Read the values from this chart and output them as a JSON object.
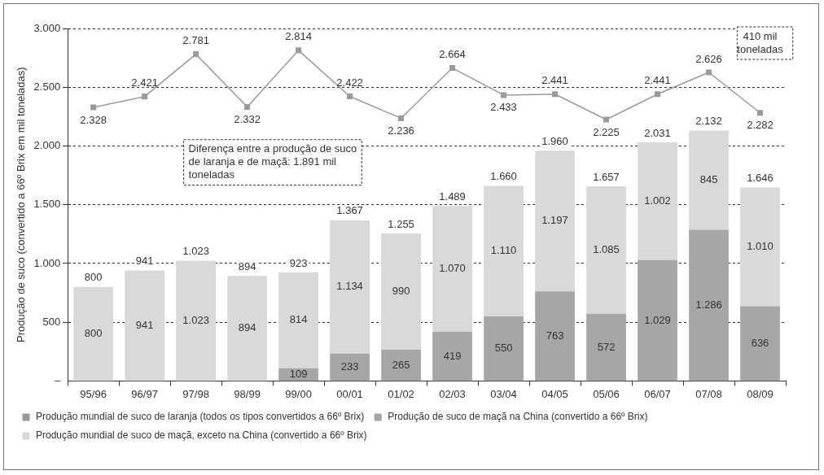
{
  "chart_data": {
    "type": "bar",
    "stacked": true,
    "ylabel": "Produção de suco (convertido a 66º Brix em mil toneladas)",
    "categories": [
      "95/96",
      "96/97",
      "97/98",
      "98/99",
      "99/00",
      "00/01",
      "01/02",
      "02/03",
      "03/04",
      "04/05",
      "05/06",
      "06/07",
      "07/08",
      "08/09"
    ],
    "series": [
      {
        "name": "Produção de suco de maçã na China (convertido a 66º Brix)",
        "color": "#a6a6a6",
        "values": [
          null,
          null,
          null,
          null,
          109,
          233,
          265,
          419,
          550,
          763,
          572,
          1029,
          1286,
          636
        ],
        "value_labels": [
          null,
          null,
          null,
          null,
          "109",
          "233",
          "265",
          "419",
          "550",
          "763",
          "572",
          "1.029",
          "1.286",
          "636"
        ]
      },
      {
        "name": "Produção mundial de suco de maçã, exceto na China (convertido a 66º Brix)",
        "color": "#d9d9d9",
        "values": [
          800,
          941,
          1023,
          894,
          814,
          1134,
          990,
          1070,
          1110,
          1197,
          1085,
          1002,
          845,
          1010
        ],
        "value_labels": [
          "800",
          "941",
          "1.023",
          "894",
          "814",
          "1.134",
          "990",
          "1.070",
          "1.110",
          "1.197",
          "1.085",
          "1.002",
          "845",
          "1.010"
        ]
      },
      {
        "name": "Produção mundial de suco de laranja (todos os tipos convertidos a 66º Brix)",
        "type": "line",
        "color": "#9a9a9a",
        "values": [
          2328,
          2421,
          2781,
          2332,
          2814,
          2422,
          2236,
          2664,
          2433,
          2441,
          2225,
          2441,
          2626,
          2282
        ],
        "value_labels": [
          "2.328",
          "2.421",
          "2.781",
          "2.332",
          "2.814",
          "2.422",
          "2.236",
          "2.664",
          "2.433",
          "2.441",
          "2.225",
          "2.441",
          "2.626",
          "2.282"
        ]
      }
    ],
    "totals": [
      "800",
      "941",
      "1.023",
      "894",
      "923",
      "1.367",
      "1.255",
      "1.489",
      "1.660",
      "1.960",
      "1.657",
      "2.031",
      "2.132",
      "1.646"
    ],
    "ylim": [
      0,
      3000
    ],
    "yticks": [
      {
        "value": 0,
        "label": "–"
      },
      500,
      {
        "value": 1000,
        "label": "1.000"
      },
      {
        "value": 1500,
        "label": "1.500"
      },
      {
        "value": 2000,
        "label": "2.000"
      },
      {
        "value": 2500,
        "label": "2.500"
      },
      {
        "value": 3000,
        "label": "3.000"
      }
    ],
    "grid": "y",
    "legend": "bottom",
    "marker": "square",
    "annotations": [
      "Diferença entre a produção de suco de laranja e de maçã: 1.891 mil toneladas",
      "410 mil toneladas"
    ]
  }
}
